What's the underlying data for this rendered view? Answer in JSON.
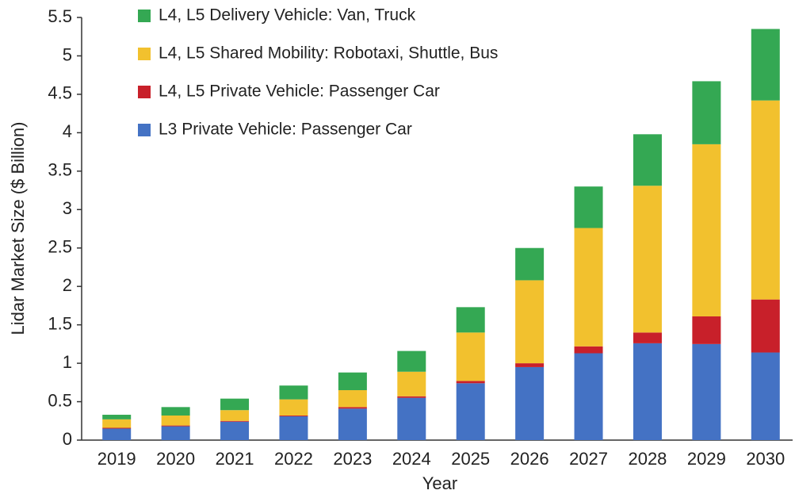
{
  "chart_data": {
    "type": "bar",
    "stacked": true,
    "x_label": "Year",
    "y_label": "Lidar Market Size ($ Billion)",
    "categories": [
      "2019",
      "2020",
      "2021",
      "2022",
      "2023",
      "2024",
      "2025",
      "2026",
      "2027",
      "2028",
      "2029",
      "2030"
    ],
    "series": [
      {
        "name": "L3 Private Vehicle: Passenger Car",
        "color": "#4472c4",
        "values": [
          0.15,
          0.18,
          0.24,
          0.31,
          0.41,
          0.55,
          0.74,
          0.95,
          1.13,
          1.26,
          1.25,
          1.14
        ]
      },
      {
        "name": "L4, L5 Private Vehicle: Passenger Car",
        "color": "#c8202a",
        "values": [
          0.01,
          0.01,
          0.01,
          0.01,
          0.02,
          0.02,
          0.03,
          0.05,
          0.09,
          0.14,
          0.36,
          0.69
        ]
      },
      {
        "name": "L4, L5 Shared Mobility: Robotaxi, Shuttle, Bus",
        "color": "#f2c12e",
        "values": [
          0.11,
          0.13,
          0.14,
          0.21,
          0.22,
          0.32,
          0.63,
          1.08,
          1.54,
          1.91,
          2.24,
          2.59
        ]
      },
      {
        "name": "L4, L5 Delivery Vehicle: Van, Truck",
        "color": "#34a853",
        "values": [
          0.06,
          0.11,
          0.15,
          0.18,
          0.23,
          0.27,
          0.33,
          0.42,
          0.54,
          0.67,
          0.82,
          0.93
        ]
      }
    ],
    "ylim": [
      0,
      5.5
    ],
    "yticks": [
      0,
      0.5,
      1,
      1.5,
      2,
      2.5,
      3,
      3.5,
      4,
      4.5,
      5,
      5.5
    ],
    "grid": false,
    "legend": "top-left"
  }
}
